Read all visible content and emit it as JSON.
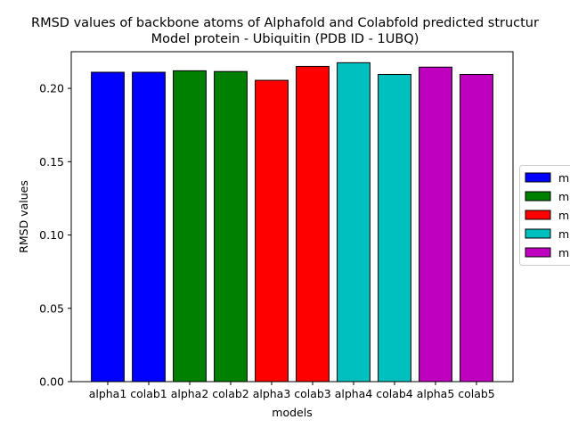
{
  "chart_data": {
    "type": "bar",
    "title_line1": "RMSD values of backbone atoms of Alphafold and Colabfold predicted structur",
    "title_line2": "Model protein - Ubiquitin (PDB ID - 1UBQ)",
    "xlabel": "models",
    "ylabel": "RMSD values",
    "categories": [
      "alpha1",
      "colab1",
      "alpha2",
      "colab2",
      "alpha3",
      "colab3",
      "alpha4",
      "colab4",
      "alpha5",
      "colab5"
    ],
    "values": [
      0.211,
      0.211,
      0.212,
      0.2115,
      0.2055,
      0.215,
      0.2175,
      0.2095,
      0.2145,
      0.2095
    ],
    "bar_colors": [
      "#0000ff",
      "#0000ff",
      "#008000",
      "#008000",
      "#ff0000",
      "#ff0000",
      "#00bfbf",
      "#00bfbf",
      "#bf00bf",
      "#bf00bf"
    ],
    "ylim": [
      0,
      0.225
    ],
    "yticks": [
      "0.00",
      "0.05",
      "0.10",
      "0.15",
      "0.20"
    ],
    "legend": {
      "placement": "right, outside plot (clipped)",
      "entries": [
        {
          "label": "m",
          "color": "#0000ff"
        },
        {
          "label": "m",
          "color": "#008000"
        },
        {
          "label": "m",
          "color": "#ff0000"
        },
        {
          "label": "m",
          "color": "#00bfbf"
        },
        {
          "label": "m",
          "color": "#bf00bf"
        }
      ]
    },
    "grid": false
  }
}
